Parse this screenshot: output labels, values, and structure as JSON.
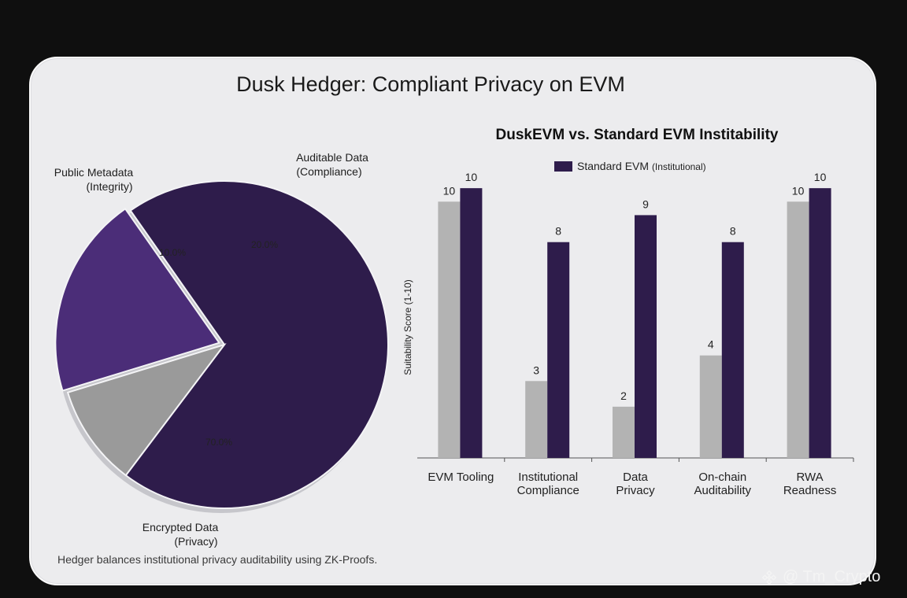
{
  "page": {
    "title": "Dusk Hedger: Compliant Privacy on EVM",
    "caption": "Hedger balances institutional privacy auditability using ZK-Proofs.",
    "watermark": "@ Tm_Crypto"
  },
  "chart_data": [
    {
      "type": "pie",
      "title": "",
      "slices": [
        {
          "label_line1": "Encrypted Data",
          "label_line2": "(Privacy)",
          "value": 70.0,
          "pct_text": "70.0%",
          "color": "#2e1c4b"
        },
        {
          "label_line1": "Public Metadata",
          "label_line2": "(Integrity)",
          "value": 10.0,
          "pct_text": "10.0%",
          "color": "#9a9a9a"
        },
        {
          "label_line1": "Auditable Data",
          "label_line2": "(Compliance)",
          "value": 20.0,
          "pct_text": "20.0%",
          "color": "#4b2d78"
        }
      ],
      "exploded_slice": "Auditable Data"
    },
    {
      "type": "bar",
      "title": "DuskEVM vs. Standard EVM  Institability",
      "ylabel": "Suitability Score (1-10)",
      "ylim": [
        0,
        11
      ],
      "legend": "top",
      "categories": [
        [
          "EVM Tooling"
        ],
        [
          "Institutional",
          "Compliance"
        ],
        [
          "Data",
          "Privacy"
        ],
        [
          "On-chain",
          "Auditability"
        ],
        [
          "RWA",
          "Readness"
        ]
      ],
      "series": [
        {
          "name": "",
          "color": "#b3b3b3",
          "values": [
            10,
            3,
            2,
            4,
            10
          ]
        },
        {
          "name": "Standard EVM",
          "name_suffix": "(Institutional)",
          "color": "#2e1c4b",
          "values": [
            10,
            8,
            9,
            8,
            10
          ]
        }
      ]
    }
  ]
}
